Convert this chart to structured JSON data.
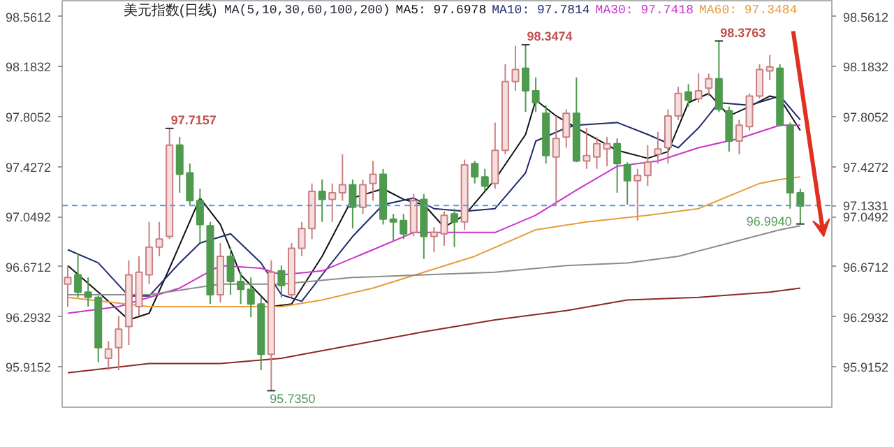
{
  "chart_data": {
    "type": "candlestick",
    "title": "美元指数(日线)",
    "annotations": [
      "MA(5,10,30,60,100,200)",
      "97.7157",
      "98.3474",
      "98.3763",
      "95.7350",
      "96.9940"
    ],
    "categories": [
      null,
      null,
      null,
      null,
      null,
      null,
      null,
      null,
      null,
      null,
      null,
      null,
      null,
      null,
      null,
      null,
      null,
      null,
      null,
      null,
      null,
      null,
      null,
      null,
      null,
      null,
      null,
      null,
      null,
      null,
      null,
      null,
      null,
      null,
      null,
      null,
      null,
      null,
      null,
      null,
      null,
      null,
      null,
      null,
      null,
      null,
      null,
      null,
      null,
      null,
      null,
      null,
      null,
      null,
      null,
      null,
      null,
      null,
      null,
      null,
      null,
      null,
      null,
      null,
      null,
      null,
      null,
      null,
      null,
      null,
      null,
      null,
      null
    ],
    "ohlc": [
      [
        96.54,
        96.68,
        96.37,
        96.59
      ],
      [
        96.61,
        96.77,
        96.44,
        96.48
      ],
      [
        96.48,
        96.59,
        96.37,
        96.44
      ],
      [
        96.44,
        96.45,
        95.95,
        96.06
      ],
      [
        95.98,
        96.11,
        95.89,
        96.05
      ],
      [
        96.06,
        96.3,
        95.89,
        96.2
      ],
      [
        96.22,
        96.72,
        96.08,
        96.61
      ],
      [
        96.37,
        96.75,
        96.3,
        96.63
      ],
      [
        96.61,
        97.01,
        96.54,
        96.82
      ],
      [
        96.82,
        97.01,
        96.75,
        96.88
      ],
      [
        96.9,
        97.7157,
        96.88,
        97.59
      ],
      [
        97.59,
        97.65,
        97.23,
        97.37
      ],
      [
        97.38,
        97.45,
        97.14,
        97.17
      ],
      [
        97.17,
        97.26,
        96.85,
        96.99
      ],
      [
        96.98,
        97.01,
        96.39,
        96.46
      ],
      [
        96.46,
        96.85,
        96.4,
        96.75
      ],
      [
        96.75,
        96.82,
        96.46,
        96.56
      ],
      [
        96.56,
        96.63,
        96.39,
        96.5
      ],
      [
        96.5,
        96.59,
        96.29,
        96.39
      ],
      [
        96.39,
        96.44,
        95.89,
        96.01
      ],
      [
        96.01,
        96.72,
        95.735,
        96.63
      ],
      [
        96.64,
        96.68,
        96.44,
        96.53
      ],
      [
        96.46,
        96.85,
        96.44,
        96.81
      ],
      [
        96.81,
        97.01,
        96.75,
        96.96
      ],
      [
        96.96,
        97.3,
        96.88,
        97.24
      ],
      [
        97.24,
        97.33,
        97.01,
        97.18
      ],
      [
        97.18,
        97.3,
        97.01,
        97.23
      ],
      [
        97.23,
        97.52,
        97.17,
        97.29
      ],
      [
        97.29,
        97.33,
        96.96,
        97.12
      ],
      [
        97.12,
        97.33,
        97.07,
        97.29
      ],
      [
        97.3,
        97.47,
        97.17,
        97.37
      ],
      [
        97.37,
        97.41,
        96.99,
        97.03
      ],
      [
        97.03,
        97.07,
        96.87,
        97.01
      ],
      [
        97.02,
        97.07,
        96.88,
        96.92
      ],
      [
        96.93,
        97.22,
        96.9,
        97.17
      ],
      [
        97.18,
        97.22,
        96.73,
        96.9
      ],
      [
        96.9,
        96.97,
        96.78,
        96.93
      ],
      [
        96.92,
        97.09,
        96.83,
        97.06
      ],
      [
        97.07,
        97.11,
        96.82,
        97.01
      ],
      [
        97.01,
        97.48,
        96.95,
        97.44
      ],
      [
        97.45,
        97.47,
        97.3,
        97.35
      ],
      [
        97.35,
        97.41,
        97.24,
        97.28
      ],
      [
        97.3,
        97.76,
        97.26,
        97.55
      ],
      [
        97.55,
        98.2,
        97.52,
        98.07
      ],
      [
        98.07,
        98.34,
        98.0,
        98.16
      ],
      [
        98.17,
        98.3474,
        97.84,
        98.0
      ],
      [
        98.0,
        98.1,
        97.84,
        97.91
      ],
      [
        97.83,
        97.89,
        97.45,
        97.51
      ],
      [
        97.5,
        97.81,
        97.14,
        97.64
      ],
      [
        97.65,
        97.86,
        97.57,
        97.83
      ],
      [
        97.83,
        98.1,
        97.46,
        97.47
      ],
      [
        97.47,
        97.72,
        97.41,
        97.51
      ],
      [
        97.5,
        97.65,
        97.41,
        97.6
      ],
      [
        97.56,
        97.65,
        97.43,
        97.6
      ],
      [
        97.6,
        97.64,
        97.23,
        97.45
      ],
      [
        97.44,
        97.46,
        97.14,
        97.32
      ],
      [
        97.32,
        97.41,
        97.02,
        97.36
      ],
      [
        97.36,
        97.59,
        97.28,
        97.46
      ],
      [
        97.52,
        97.69,
        97.45,
        97.56
      ],
      [
        97.57,
        97.86,
        97.45,
        97.81
      ],
      [
        97.81,
        98.03,
        97.78,
        97.98
      ],
      [
        97.99,
        98.05,
        97.88,
        97.93
      ],
      [
        97.94,
        98.13,
        97.91,
        98.0
      ],
      [
        98.02,
        98.13,
        97.96,
        98.09
      ],
      [
        98.09,
        98.3763,
        97.84,
        97.86
      ],
      [
        97.85,
        97.88,
        97.54,
        97.62
      ],
      [
        97.62,
        97.78,
        97.52,
        97.74
      ],
      [
        97.73,
        97.98,
        97.7,
        97.96
      ],
      [
        97.96,
        98.2,
        97.94,
        98.16
      ],
      [
        98.15,
        98.27,
        98.08,
        98.18
      ],
      [
        98.17,
        98.2,
        97.73,
        97.74
      ],
      [
        97.74,
        97.76,
        97.11,
        97.23
      ],
      [
        97.23,
        97.26,
        96.994,
        97.13
      ]
    ],
    "series": [
      {
        "type": "line",
        "name": "MA5: 97.6978",
        "color": "#111111",
        "values": [
          96.68,
          null,
          null,
          96.48,
          null,
          null,
          96.27,
          null,
          96.32,
          null,
          96.66,
          null,
          null,
          97.19,
          null,
          96.99,
          null,
          96.61,
          null,
          null,
          96.37,
          null,
          96.39,
          null,
          null,
          96.75,
          null,
          null,
          97.19,
          null,
          null,
          97.26,
          null,
          97.18,
          null,
          97.14,
          null,
          96.97,
          null,
          97.06,
          null,
          null,
          97.33,
          null,
          null,
          97.67,
          97.93,
          null,
          97.81,
          null,
          97.72,
          null,
          null,
          null,
          97.55,
          null,
          null,
          97.49,
          null,
          97.54,
          null,
          97.91,
          null,
          97.98,
          null,
          97.81,
          null,
          97.88,
          null,
          97.96,
          97.94,
          null,
          97.7
        ]
      },
      {
        "type": "line",
        "name": "MA10: 97.7814",
        "color": "#1f2a6e",
        "values": [
          96.8,
          null,
          null,
          96.7,
          null,
          null,
          96.45,
          null,
          96.45,
          null,
          null,
          96.7,
          null,
          96.85,
          null,
          null,
          96.92,
          null,
          null,
          96.7,
          null,
          96.46,
          null,
          96.41,
          null,
          96.61,
          null,
          null,
          96.9,
          null,
          null,
          97.14,
          null,
          null,
          97.19,
          null,
          97.11,
          null,
          null,
          97.09,
          null,
          null,
          97.11,
          null,
          null,
          97.38,
          97.62,
          null,
          null,
          97.72,
          97.74,
          null,
          null,
          null,
          97.76,
          null,
          null,
          97.67,
          null,
          null,
          97.57,
          null,
          97.72,
          null,
          97.91,
          null,
          null,
          97.89,
          null,
          null,
          97.96,
          null,
          97.78
        ]
      },
      {
        "type": "line",
        "name": "MA30: 97.7418",
        "color": "#cc33cc",
        "values": [
          96.32,
          null,
          null,
          null,
          null,
          96.37,
          null,
          null,
          null,
          null,
          null,
          96.51,
          null,
          null,
          null,
          96.68,
          null,
          null,
          null,
          96.66,
          null,
          96.61,
          null,
          null,
          null,
          96.64,
          null,
          null,
          null,
          null,
          96.8,
          null,
          null,
          null,
          96.93,
          null,
          null,
          null,
          96.93,
          null,
          null,
          null,
          96.93,
          null,
          null,
          null,
          97.06,
          null,
          null,
          null,
          97.25,
          null,
          null,
          null,
          97.43,
          null,
          null,
          null,
          97.47,
          null,
          null,
          null,
          97.57,
          null,
          null,
          null,
          97.64,
          null,
          null,
          null,
          97.74,
          null,
          97.74
        ]
      },
      {
        "type": "line",
        "name": "MA60: 97.3484",
        "color": "#e69d3a",
        "values": [
          96.44,
          null,
          null,
          null,
          null,
          null,
          null,
          null,
          96.37,
          null,
          null,
          null,
          null,
          null,
          null,
          96.37,
          null,
          null,
          null,
          null,
          null,
          96.37,
          null,
          null,
          null,
          96.42,
          null,
          null,
          null,
          null,
          96.51,
          null,
          null,
          null,
          null,
          96.63,
          null,
          null,
          null,
          null,
          96.75,
          null,
          null,
          null,
          null,
          null,
          96.95,
          null,
          null,
          null,
          null,
          97.01,
          null,
          null,
          null,
          null,
          null,
          97.06,
          null,
          null,
          null,
          null,
          97.11,
          null,
          null,
          null,
          null,
          null,
          97.3,
          null,
          97.33,
          null,
          97.35
        ]
      },
      {
        "type": "line",
        "color": "#8c8c8c",
        "values": [
          96.46,
          null,
          null,
          null,
          null,
          null,
          null,
          null,
          96.46,
          null,
          null,
          null,
          null,
          null,
          null,
          96.54,
          null,
          null,
          null,
          null,
          null,
          96.54,
          null,
          null,
          null,
          null,
          null,
          null,
          96.59,
          null,
          null,
          null,
          null,
          null,
          null,
          96.61,
          null,
          null,
          null,
          null,
          null,
          null,
          96.63,
          null,
          null,
          null,
          null,
          null,
          null,
          96.68,
          null,
          null,
          null,
          null,
          null,
          96.7,
          null,
          null,
          null,
          null,
          96.75,
          null,
          null,
          null,
          null,
          96.85,
          null,
          null,
          null,
          null,
          96.95,
          null,
          96.98
        ]
      },
      {
        "type": "line",
        "color": "#8b2a2a",
        "values": [
          95.87,
          null,
          null,
          null,
          null,
          null,
          null,
          null,
          95.94,
          null,
          null,
          null,
          null,
          null,
          null,
          95.94,
          null,
          null,
          null,
          null,
          null,
          95.98,
          null,
          null,
          null,
          null,
          null,
          null,
          96.08,
          null,
          null,
          null,
          null,
          null,
          null,
          96.18,
          null,
          null,
          null,
          null,
          null,
          null,
          96.27,
          null,
          null,
          null,
          null,
          null,
          null,
          96.34,
          null,
          null,
          null,
          null,
          null,
          96.42,
          null,
          null,
          null,
          null,
          null,
          null,
          96.44,
          null,
          null,
          null,
          null,
          null,
          null,
          96.48,
          null,
          null,
          96.51
        ]
      }
    ],
    "ylim": [
      95.6,
      98.68
    ],
    "yticks": [
      95.9152,
      96.2932,
      96.6712,
      97.0492,
      97.4272,
      97.8052,
      98.1832,
      98.5612
    ],
    "y2lim": [
      95.6,
      98.68
    ],
    "y2ticks": [
      95.9152,
      96.2932,
      96.6712,
      97.0492,
      97.4272,
      97.8052,
      98.1832,
      98.5612
    ],
    "ref_lines": [
      {
        "axis": "y",
        "value": 97.1331,
        "label": "97.1331",
        "color": "#5b9bd5",
        "line_style": "dashed"
      }
    ],
    "tick_labels": "y",
    "grid": false
  }
}
